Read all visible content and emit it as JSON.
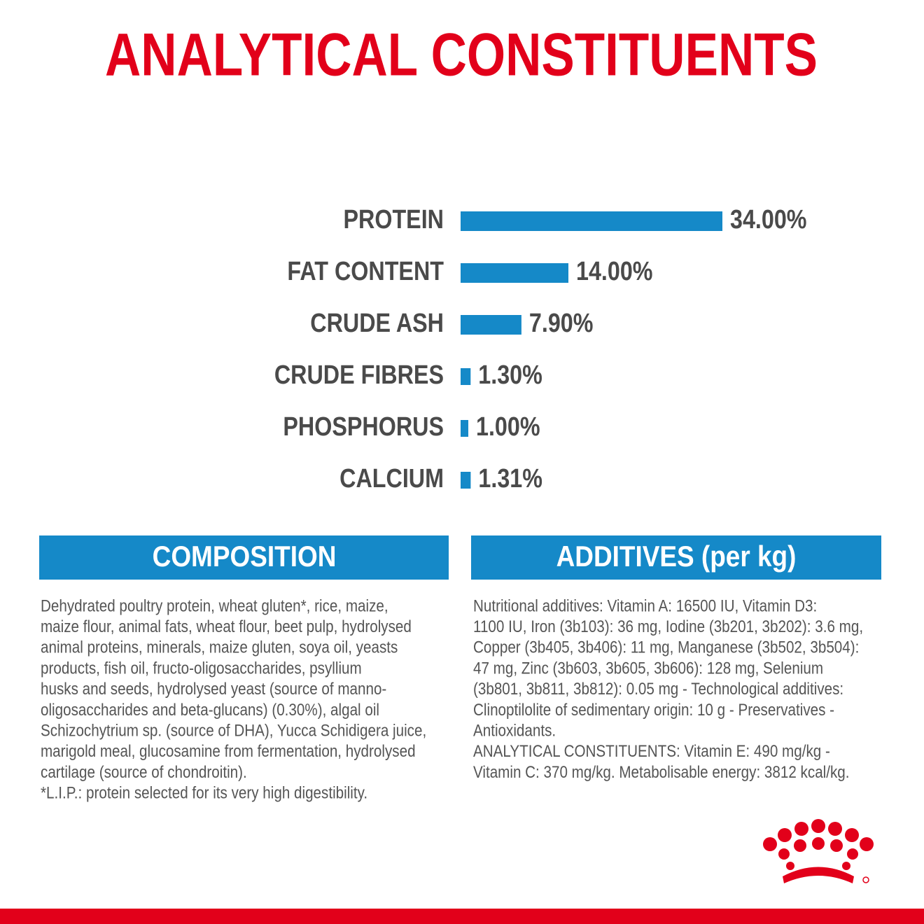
{
  "chart_data": {
    "type": "bar",
    "orientation": "horizontal",
    "title": "ANALYTICAL CONSTITUENTS",
    "categories": [
      "PROTEIN",
      "FAT CONTENT",
      "CRUDE ASH",
      "CRUDE FIBRES",
      "PHOSPHORUS",
      "CALCIUM"
    ],
    "values": [
      34,
      14,
      7.9,
      1.3,
      1,
      1.31
    ],
    "value_labels": [
      "34.00%",
      "14.00%",
      "7.90%",
      "1.30%",
      "1.00%",
      "1.31%"
    ],
    "color": "#1589c8"
  },
  "composition": {
    "title": "COMPOSITION",
    "lines": [
      "Dehydrated poultry protein, wheat gluten*, rice, maize,",
      "maize flour, animal fats, wheat flour, beet pulp, hydrolysed",
      "animal proteins, minerals, maize gluten, soya oil, yeasts",
      "products, fish oil, fructo-oligosaccharides, psyllium",
      "husks and seeds, hydrolysed yeast (source of manno-",
      "oligosaccharides and beta-glucans) (0.30%), algal oil",
      "Schizochytrium sp. (source of DHA), Yucca Schidigera juice,",
      "marigold meal, glucosamine from fermentation, hydrolysed",
      "cartilage (source of chondroitin).",
      "*L.I.P.: protein selected for its very high digestibility."
    ]
  },
  "additives": {
    "title": "ADDITIVES (per kg)",
    "lines": [
      "Nutritional additives: Vitamin A: 16500 IU, Vitamin D3:",
      "1100 IU, Iron (3b103): 36 mg, Iodine (3b201, 3b202): 3.6 mg,",
      "Copper (3b405, 3b406): 11 mg, Manganese (3b502, 3b504):",
      "47 mg, Zinc (3b603, 3b605, 3b606): 128 mg, Selenium",
      "(3b801, 3b811, 3b812): 0.05 mg - Technological additives:",
      "Clinoptilolite of sedimentary origin: 10 g - Preservatives -",
      "Antioxidants.",
      "ANALYTICAL CONSTITUENTS: Vitamin E: 490 mg/kg -",
      "Vitamin C: 370 mg/kg. Metabolisable energy: 3812 kcal/kg."
    ]
  }
}
